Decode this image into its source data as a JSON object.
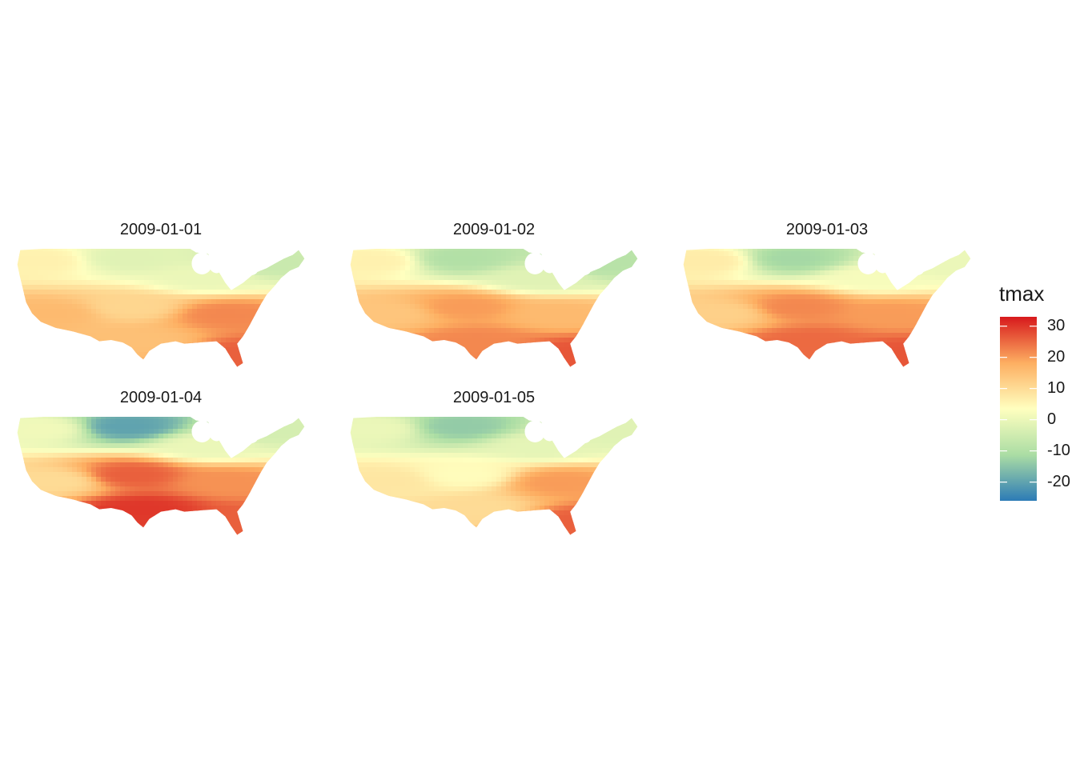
{
  "legend": {
    "title": "tmax",
    "breaks": [
      "30",
      "20",
      "10",
      "0",
      "-10",
      "-20"
    ],
    "break_values": [
      30,
      20,
      10,
      0,
      -10,
      -20
    ],
    "range": [
      -26,
      33
    ],
    "palette": [
      "#2c7bb6",
      "#abdda4",
      "#ffffbf",
      "#fdae61",
      "#d7191c"
    ]
  },
  "panels": [
    {
      "date": "2009-01-01",
      "temps": {
        "northwest": 6,
        "southwest": 16,
        "northcentral": -2,
        "southcentral": 11,
        "northeast": -6,
        "southeast": 22,
        "texas": 15,
        "florida": 26,
        "greatlakes": 0
      }
    },
    {
      "date": "2009-01-02",
      "temps": {
        "northwest": 6,
        "southwest": 14,
        "northcentral": -10,
        "southcentral": 20,
        "northeast": -9,
        "southeast": 16,
        "texas": 22,
        "florida": 27,
        "greatlakes": -2
      }
    },
    {
      "date": "2009-01-03",
      "temps": {
        "northwest": 7,
        "southwest": 12,
        "northcentral": -12,
        "southcentral": 22,
        "northeast": 0,
        "southeast": 20,
        "texas": 25,
        "florida": 27,
        "greatlakes": 2
      }
    },
    {
      "date": "2009-01-04",
      "temps": {
        "northwest": 1,
        "southwest": 10,
        "northcentral": -20,
        "southcentral": 26,
        "northeast": -4,
        "southeast": 21,
        "texas": 30,
        "florida": 26,
        "greatlakes": 0
      }
    },
    {
      "date": "2009-01-05",
      "temps": {
        "northwest": 0,
        "southwest": 8,
        "northcentral": -14,
        "southcentral": 4,
        "northeast": -2,
        "southeast": 20,
        "texas": 10,
        "florida": 26,
        "greatlakes": -1
      }
    }
  ]
}
